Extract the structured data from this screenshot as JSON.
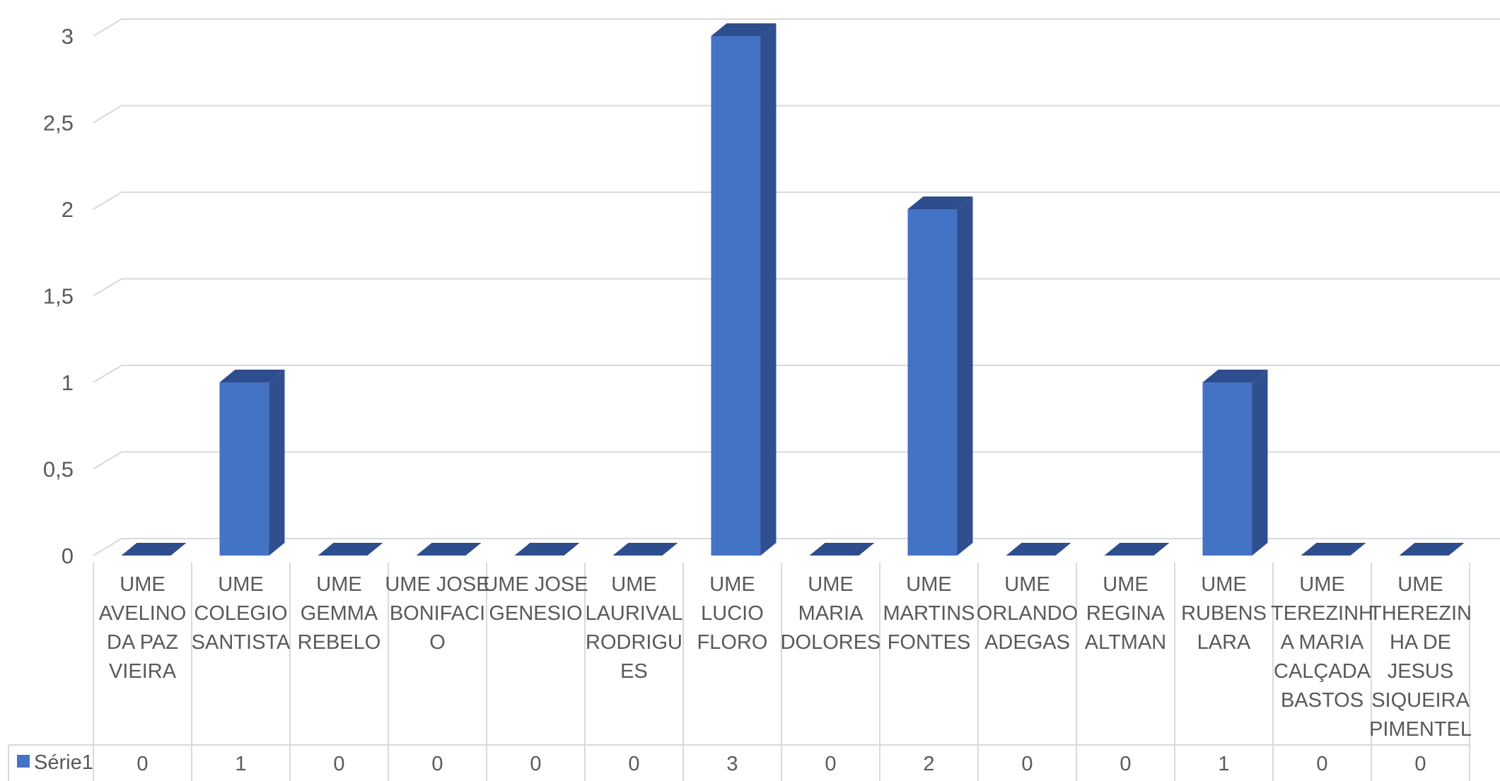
{
  "chart_data": {
    "type": "bar",
    "categories": [
      "UME AVELINO DA PAZ VIEIRA",
      "UME COLEGIO SANTISTA",
      "UME GEMMA REBELO",
      "UME JOSE BONIFACIO",
      "UME JOSE GENESIO",
      "UME LAURIVAL RODRIGUES",
      "UME LUCIO FLORO",
      "UME MARIA DOLORES",
      "UME MARTINS FONTES",
      "UME ORLANDO ADEGAS",
      "UME REGINA ALTMAN",
      "UME RUBENS LARA",
      "UME TEREZINHA MARIA CALÇADA BASTOS",
      "UME THEREZINHA DE JESUS SIQUEIRA PIMENTEL"
    ],
    "category_lines": [
      [
        "UME",
        "AVELINO",
        "DA PAZ",
        "VIEIRA"
      ],
      [
        "UME",
        "COLEGIO",
        "SANTISTA"
      ],
      [
        "UME",
        "GEMMA",
        "REBELO"
      ],
      [
        "UME JOSE",
        "BONIFACI",
        "O"
      ],
      [
        "UME JOSE",
        "GENESIO"
      ],
      [
        "UME",
        "LAURIVAL",
        "RODRIGU",
        "ES"
      ],
      [
        "UME",
        "LUCIO",
        "FLORO"
      ],
      [
        "UME",
        "MARIA",
        "DOLORES"
      ],
      [
        "UME",
        "MARTINS",
        "FONTES"
      ],
      [
        "UME",
        "ORLANDO",
        "ADEGAS"
      ],
      [
        "UME",
        "REGINA",
        "ALTMAN"
      ],
      [
        "UME",
        "RUBENS",
        "LARA"
      ],
      [
        "UME",
        "TEREZINH",
        "A MARIA",
        "CALÇADA",
        "BASTOS"
      ],
      [
        "UME",
        "THEREZIN",
        "HA DE",
        "JESUS",
        "SIQUEIRA",
        "PIMENTEL"
      ]
    ],
    "series": [
      {
        "name": "Série1",
        "values": [
          0,
          1,
          0,
          0,
          0,
          0,
          3,
          0,
          2,
          0,
          0,
          1,
          0,
          0
        ]
      }
    ],
    "y_ticks": [
      "0",
      "0,5",
      "1",
      "1,5",
      "2",
      "2,5",
      "3"
    ],
    "ylim": [
      0,
      3
    ],
    "grid": true,
    "legend": "data-table",
    "colors": {
      "bar_front": "#4472C4",
      "bar_side": "#2F4F8F",
      "bar_top": "#2E4D8C",
      "grid": "#D9D9D9",
      "text": "#595959"
    }
  }
}
